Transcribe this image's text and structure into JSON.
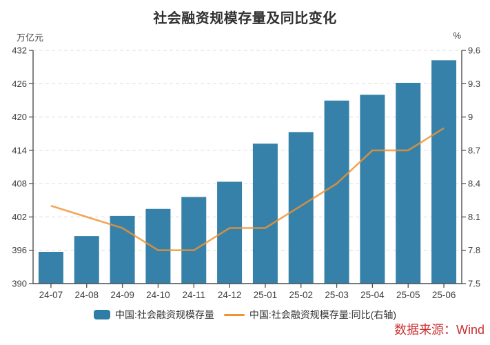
{
  "title": "社会融资规模存量及同比变化",
  "left_axis_unit": "万亿元",
  "right_axis_unit": "%",
  "source": "数据来源：Wind",
  "colors": {
    "bar": "#2F7DA6",
    "line": "#F0922F",
    "source_text": "#C9302F",
    "grid": "#dcdcdc",
    "spine": "#4d4d4d",
    "tick_text": "#3c3c3c"
  },
  "chart_data": {
    "type": "bar+line combo",
    "categories": [
      "24-07",
      "24-08",
      "24-09",
      "24-10",
      "24-11",
      "24-12",
      "25-01",
      "25-02",
      "25-03",
      "25-04",
      "25-05",
      "25-06"
    ],
    "series": [
      {
        "name": "中国:社会融资规模存量",
        "type": "bar",
        "axis": "left",
        "color": "#2F7DA6",
        "values": [
          395.72,
          398.56,
          402.19,
          403.45,
          405.6,
          408.34,
          415.2,
          417.29,
          422.96,
          424.0,
          426.16,
          430.22
        ]
      },
      {
        "name": "中国:社会融资规模存量:同比(右轴)",
        "type": "line",
        "axis": "right",
        "color": "#F0922F",
        "values": [
          8.2,
          8.1,
          8.0,
          7.8,
          7.8,
          8.0,
          8.0,
          8.2,
          8.4,
          8.7,
          8.7,
          8.9
        ]
      }
    ],
    "left_ylim": [
      390,
      432
    ],
    "left_tick_labels": [
      "390",
      "396",
      "402",
      "408",
      "414",
      "420",
      "426",
      "432"
    ],
    "left_tick_values": [
      390,
      396,
      402,
      408,
      414,
      420,
      426,
      432
    ],
    "right_ylim": [
      7.5,
      9.6
    ],
    "right_tick_labels": [
      "7.5",
      "7.8",
      "8.1",
      "8.4",
      "8.7",
      "9",
      "9.3",
      "9.6"
    ],
    "right_tick_values": [
      7.5,
      7.8,
      8.1,
      8.4,
      8.7,
      9.0,
      9.3,
      9.6
    ],
    "grid": "horizontal-dashed",
    "legend_position": "bottom-center"
  }
}
